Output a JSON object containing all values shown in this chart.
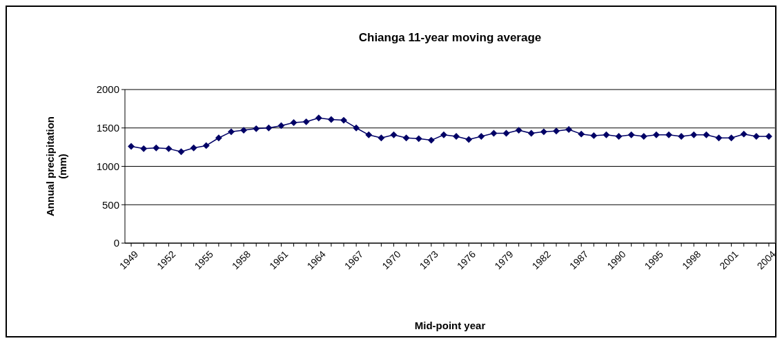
{
  "chart_data": {
    "type": "line",
    "title": "Chianga 11-year moving average",
    "xlabel": "Mid-point year",
    "ylabel": "Annual precipitation (mm)",
    "categories": [
      "1949",
      null,
      null,
      "1952",
      null,
      null,
      "1955",
      null,
      null,
      "1958",
      null,
      null,
      "1961",
      null,
      null,
      "1964",
      null,
      null,
      "1967",
      null,
      null,
      "1970",
      null,
      null,
      "1973",
      null,
      null,
      "1976",
      null,
      null,
      "1979",
      null,
      null,
      "1982",
      null,
      null,
      "1987",
      null,
      null,
      "1990",
      null,
      null,
      "1995",
      null,
      null,
      "1998",
      null,
      null,
      "2001",
      null,
      null,
      "2004"
    ],
    "series": [
      {
        "color": "#000066",
        "values": [
          1260,
          1230,
          1240,
          1230,
          1190,
          1240,
          1270,
          1370,
          1450,
          1470,
          1490,
          1500,
          1530,
          1570,
          1580,
          1630,
          1610,
          1600,
          1500,
          1410,
          1370,
          1410,
          1370,
          1360,
          1340,
          1410,
          1390,
          1350,
          1390,
          1430,
          1430,
          1470,
          1430,
          1450,
          1460,
          1480,
          1420,
          1400,
          1410,
          1390,
          1410,
          1390,
          1410,
          1410,
          1390,
          1410,
          1410,
          1370,
          1370,
          1420,
          1390,
          1390
        ]
      }
    ],
    "ylim": [
      0,
      2000
    ],
    "yticks": [
      0,
      500,
      1000,
      1500,
      2000
    ],
    "grid": "y",
    "marker": "diamond",
    "line_style": "solid"
  }
}
